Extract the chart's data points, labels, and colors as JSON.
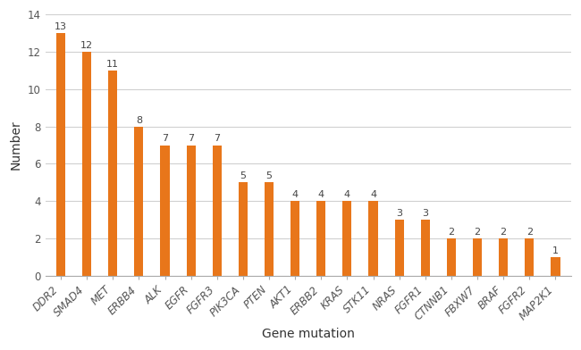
{
  "categories": [
    "DDR2",
    "SMAD4",
    "MET",
    "ERBB4",
    "ALK",
    "EGFR",
    "FGFR3",
    "PIK3CA",
    "PTEN",
    "AKT1",
    "ERBB2",
    "KRAS",
    "STK11",
    "NRAS",
    "FGFR1",
    "CTNNB1",
    "FBXW7",
    "BRAF",
    "FGFR2",
    "MAP2K1"
  ],
  "values": [
    13,
    12,
    11,
    8,
    7,
    7,
    7,
    5,
    5,
    4,
    4,
    4,
    4,
    3,
    3,
    2,
    2,
    2,
    2,
    1
  ],
  "bar_color": "#E8761A",
  "xlabel": "Gene mutation",
  "ylabel": "Number",
  "ylim": [
    0,
    14
  ],
  "yticks": [
    0,
    2,
    4,
    6,
    8,
    10,
    12,
    14
  ],
  "background_color": "#ffffff",
  "grid_color": "#d0d0d0",
  "tick_label_fontsize": 8.5,
  "axis_label_fontsize": 10,
  "value_fontsize": 8,
  "bar_width": 0.35
}
